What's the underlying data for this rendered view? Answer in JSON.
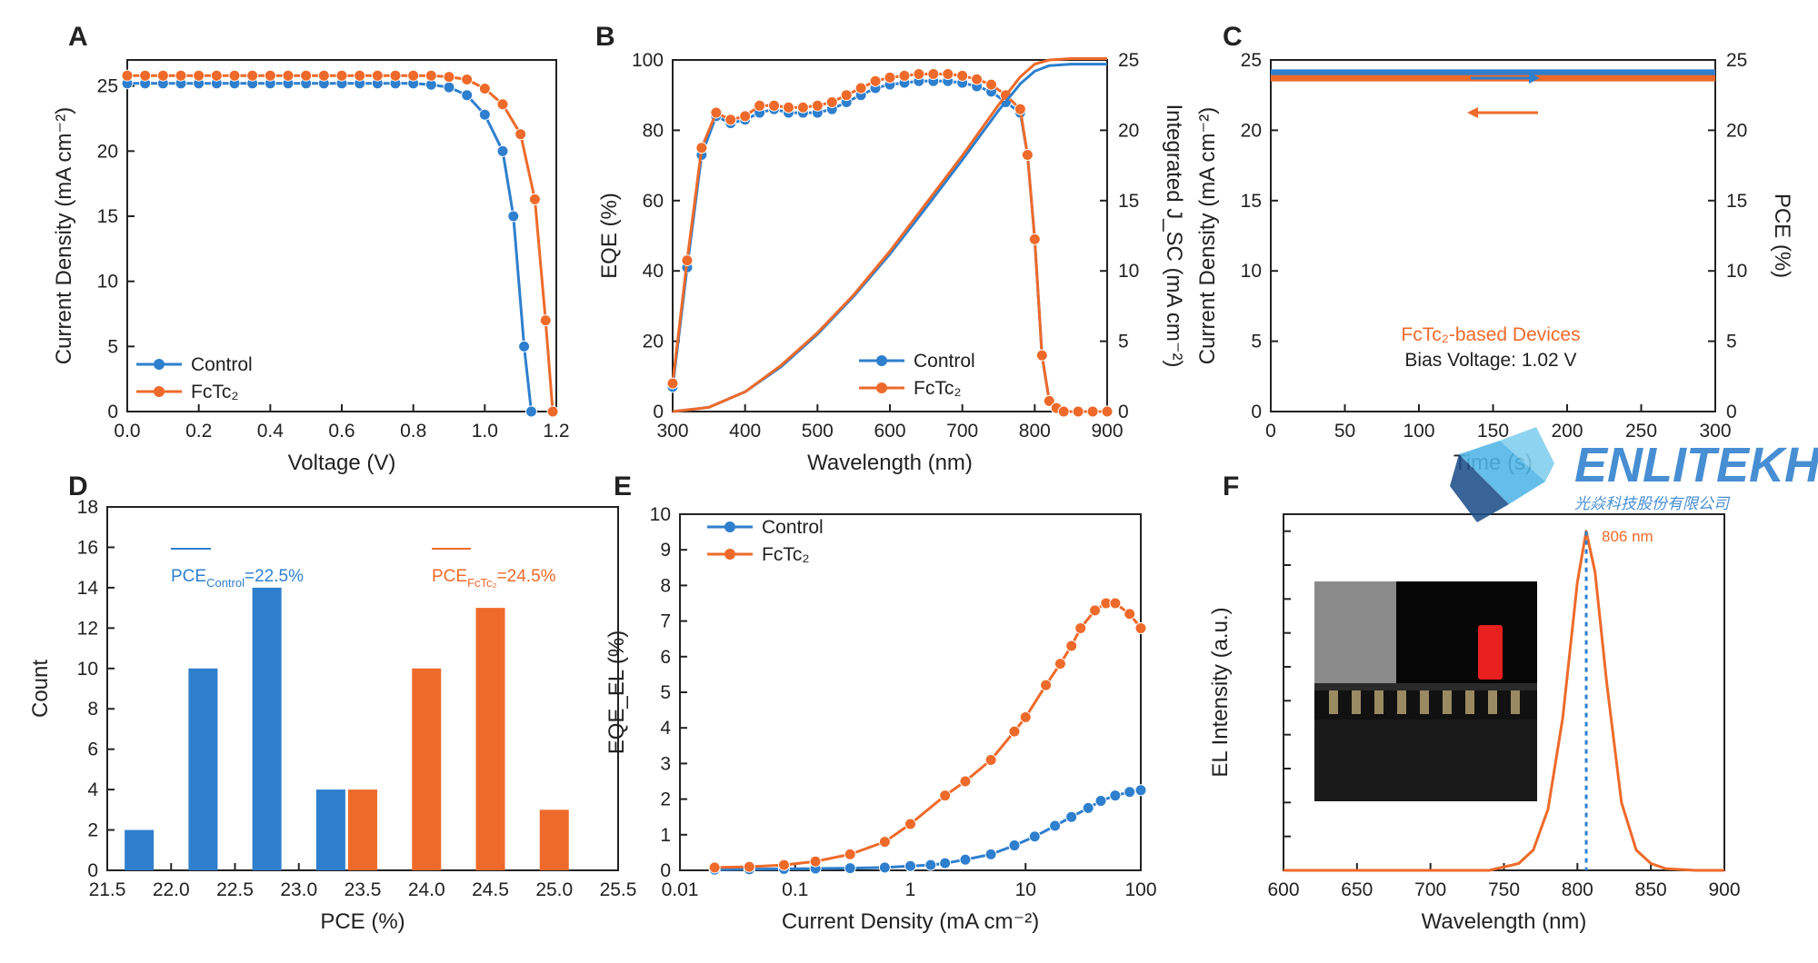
{
  "watermark": {
    "brand": "ENLITEKH",
    "subtitle": "光焱科技股份有限公司"
  },
  "colors": {
    "control": "#2e7fce",
    "fctc2": "#ee6a2a",
    "axis": "#222222"
  },
  "chart_data": [
    {
      "panel": "A",
      "type": "line",
      "xlabel": "Voltage (V)",
      "ylabel": "Current Density (mA cm⁻²)",
      "xlim": [
        0.0,
        1.2
      ],
      "ylim": [
        0,
        27
      ],
      "xticks": [
        "0.0",
        "0.2",
        "0.4",
        "0.6",
        "0.8",
        "1.0",
        "1.2"
      ],
      "yticks": [
        "0",
        "5",
        "10",
        "15",
        "20",
        "25"
      ],
      "series": [
        {
          "name": "Control",
          "x": [
            0.0,
            0.05,
            0.1,
            0.15,
            0.2,
            0.25,
            0.3,
            0.35,
            0.4,
            0.45,
            0.5,
            0.55,
            0.6,
            0.65,
            0.7,
            0.75,
            0.8,
            0.85,
            0.9,
            0.95,
            1.0,
            1.05,
            1.08,
            1.11,
            1.13
          ],
          "y": [
            25.2,
            25.2,
            25.2,
            25.2,
            25.2,
            25.2,
            25.2,
            25.2,
            25.2,
            25.2,
            25.2,
            25.2,
            25.2,
            25.2,
            25.2,
            25.2,
            25.2,
            25.1,
            24.9,
            24.3,
            22.8,
            20.0,
            15.0,
            5.0,
            0
          ]
        },
        {
          "name": "FcTc₂",
          "x": [
            0.0,
            0.05,
            0.1,
            0.15,
            0.2,
            0.25,
            0.3,
            0.35,
            0.4,
            0.45,
            0.5,
            0.55,
            0.6,
            0.65,
            0.7,
            0.75,
            0.8,
            0.85,
            0.9,
            0.95,
            1.0,
            1.05,
            1.1,
            1.14,
            1.17,
            1.19
          ],
          "y": [
            25.8,
            25.8,
            25.8,
            25.8,
            25.8,
            25.8,
            25.8,
            25.8,
            25.8,
            25.8,
            25.8,
            25.8,
            25.8,
            25.8,
            25.8,
            25.8,
            25.8,
            25.8,
            25.7,
            25.5,
            24.8,
            23.6,
            21.3,
            16.3,
            7.0,
            0
          ]
        }
      ]
    },
    {
      "panel": "B",
      "type": "line",
      "xlabel": "Wavelength (nm)",
      "ylabel": "EQE (%)",
      "y2label": "Integrated J_SC (mA cm⁻²)",
      "xlim": [
        300,
        900
      ],
      "ylim": [
        0,
        100
      ],
      "y2lim": [
        0,
        25
      ],
      "xticks": [
        "300",
        "400",
        "500",
        "600",
        "700",
        "800",
        "900"
      ],
      "yticks": [
        "0",
        "20",
        "40",
        "60",
        "80",
        "100"
      ],
      "y2ticks": [
        "0",
        "5",
        "10",
        "15",
        "20",
        "25"
      ],
      "series": [
        {
          "name": "Control",
          "x": [
            300,
            320,
            340,
            360,
            380,
            400,
            420,
            440,
            460,
            480,
            500,
            520,
            540,
            560,
            580,
            600,
            620,
            640,
            660,
            680,
            700,
            720,
            740,
            760,
            780,
            790,
            800,
            810,
            820,
            830,
            840,
            860,
            880,
            900
          ],
          "y": [
            7,
            41,
            73,
            84,
            82,
            83,
            85,
            86,
            85,
            85,
            85,
            86,
            88,
            90,
            92,
            93,
            93.5,
            94,
            94,
            94,
            93.5,
            92.5,
            91,
            88,
            85,
            73,
            49,
            16,
            3,
            1,
            0,
            0,
            0,
            0
          ]
        },
        {
          "name": "FcTc₂",
          "x": [
            300,
            320,
            340,
            360,
            380,
            400,
            420,
            440,
            460,
            480,
            500,
            520,
            540,
            560,
            580,
            600,
            620,
            640,
            660,
            680,
            700,
            720,
            740,
            760,
            780,
            790,
            800,
            810,
            820,
            830,
            840,
            860,
            880,
            900
          ],
          "y": [
            8,
            43,
            75,
            85,
            83,
            84,
            87,
            87,
            86.5,
            86.5,
            87,
            88,
            90,
            92,
            94,
            95,
            95.5,
            96,
            96,
            96,
            95.5,
            94.5,
            93,
            90,
            86,
            73,
            49,
            16,
            3,
            1,
            0,
            0,
            0,
            0
          ]
        },
        {
          "name": "Control J_SC",
          "axis": "right",
          "x": [
            300,
            350,
            400,
            450,
            500,
            550,
            600,
            650,
            700,
            750,
            780,
            800,
            820,
            850,
            900
          ],
          "y": [
            0,
            0.3,
            1.4,
            3.2,
            5.5,
            8.2,
            11.2,
            14.5,
            17.9,
            21.4,
            23.3,
            24.2,
            24.6,
            24.7,
            24.7
          ]
        },
        {
          "name": "FcTc₂ J_SC",
          "axis": "right",
          "x": [
            300,
            350,
            400,
            450,
            500,
            550,
            600,
            650,
            700,
            750,
            780,
            800,
            820,
            850,
            900
          ],
          "y": [
            0,
            0.3,
            1.4,
            3.3,
            5.6,
            8.3,
            11.4,
            14.8,
            18.2,
            21.8,
            23.8,
            24.7,
            25.0,
            25.1,
            25.1
          ]
        }
      ]
    },
    {
      "panel": "C",
      "type": "line",
      "xlabel": "Time (s)",
      "ylabel": "Current Density (mA cm⁻²)",
      "y2label": "PCE (%)",
      "xlim": [
        0,
        300
      ],
      "ylim": [
        0,
        25
      ],
      "y2lim": [
        0,
        25
      ],
      "xticks": [
        "0",
        "50",
        "100",
        "150",
        "200",
        "250",
        "300"
      ],
      "yticks": [
        "0",
        "5",
        "10",
        "15",
        "20",
        "25"
      ],
      "y2ticks": [
        "0",
        "5",
        "10",
        "15",
        "20",
        "25"
      ],
      "annotations": [
        "FcTc₂-based Devices",
        "Bias Voltage: 1.02 V"
      ],
      "series": [
        {
          "name": "Current Density",
          "x": [
            0,
            300
          ],
          "y": [
            24.1,
            24.1
          ]
        },
        {
          "name": "PCE",
          "axis": "right",
          "x": [
            0,
            300
          ],
          "y": [
            23.7,
            23.7
          ]
        }
      ]
    },
    {
      "panel": "D",
      "type": "bar",
      "xlabel": "PCE (%)",
      "ylabel": "Count",
      "xlim": [
        21.5,
        25.5
      ],
      "ylim": [
        0,
        18
      ],
      "xticks": [
        "21.5",
        "22.0",
        "22.5",
        "23.0",
        "23.5",
        "24.0",
        "24.5",
        "25.0",
        "25.5"
      ],
      "yticks": [
        "0",
        "2",
        "4",
        "6",
        "8",
        "10",
        "12",
        "14",
        "16",
        "18"
      ],
      "annotations": [
        "PCE",
        "Control",
        "=22.5%",
        "PCE",
        "FcTc₂",
        "=24.5%"
      ],
      "series": [
        {
          "name": "Control",
          "x": [
            21.75,
            22.25,
            22.75,
            23.25
          ],
          "y": [
            2,
            10,
            14,
            4
          ]
        },
        {
          "name": "FcTc₂",
          "x": [
            23.5,
            24.0,
            24.5,
            25.0
          ],
          "y": [
            4,
            10,
            13,
            3
          ]
        }
      ]
    },
    {
      "panel": "E",
      "type": "line",
      "xlabel": "Current Density (mA cm⁻²)",
      "ylabel": "EQE_EL (%)",
      "xscale": "log",
      "xlim": [
        0.01,
        100
      ],
      "ylim": [
        0,
        10
      ],
      "xticks": [
        "0.01",
        "0.1",
        "1",
        "10",
        "100"
      ],
      "yticks": [
        "0",
        "1",
        "2",
        "3",
        "4",
        "5",
        "6",
        "7",
        "8",
        "9",
        "10"
      ],
      "series": [
        {
          "name": "Control",
          "x": [
            0.02,
            0.04,
            0.08,
            0.15,
            0.3,
            0.6,
            1,
            1.5,
            2,
            3,
            5,
            8,
            12,
            18,
            25,
            35,
            45,
            60,
            80,
            100
          ],
          "y": [
            0.02,
            0.03,
            0.04,
            0.05,
            0.06,
            0.08,
            0.12,
            0.15,
            0.2,
            0.3,
            0.45,
            0.7,
            0.95,
            1.25,
            1.5,
            1.75,
            1.95,
            2.1,
            2.2,
            2.25
          ]
        },
        {
          "name": "FcTc₂",
          "x": [
            0.02,
            0.04,
            0.08,
            0.15,
            0.3,
            0.6,
            1,
            2,
            3,
            5,
            8,
            10,
            15,
            20,
            25,
            30,
            40,
            50,
            60,
            80,
            100
          ],
          "y": [
            0.08,
            0.1,
            0.15,
            0.25,
            0.45,
            0.8,
            1.3,
            2.1,
            2.5,
            3.1,
            3.9,
            4.3,
            5.2,
            5.8,
            6.3,
            6.8,
            7.3,
            7.5,
            7.5,
            7.2,
            6.8
          ]
        }
      ]
    },
    {
      "panel": "F",
      "type": "line",
      "xlabel": "Wavelength (nm)",
      "ylabel": "EL Intensity (a.u.)",
      "xlim": [
        600,
        900
      ],
      "ylim": [
        0,
        1.05
      ],
      "xticks": [
        "600",
        "650",
        "700",
        "750",
        "800",
        "850",
        "900"
      ],
      "annotations": [
        "806 nm"
      ],
      "series": [
        {
          "name": "EL",
          "x": [
            600,
            740,
            760,
            770,
            780,
            790,
            800,
            806,
            812,
            820,
            830,
            840,
            850,
            860,
            880,
            900
          ],
          "y": [
            0,
            0,
            0.02,
            0.06,
            0.18,
            0.45,
            0.85,
            1.0,
            0.88,
            0.55,
            0.2,
            0.06,
            0.02,
            0.005,
            0,
            0
          ]
        }
      ]
    }
  ]
}
